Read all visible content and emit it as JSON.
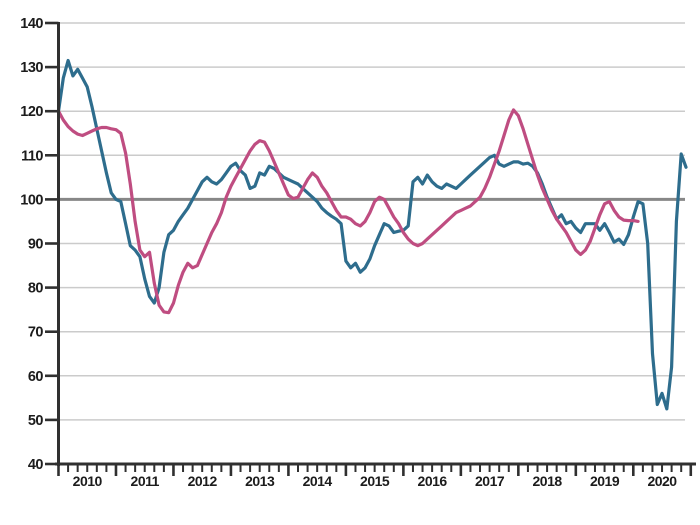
{
  "chart_data": {
    "type": "line",
    "title": "",
    "xlabel": "",
    "ylabel": "",
    "x_axis": {
      "year_labels": [
        "2010",
        "2011",
        "2012",
        "2013",
        "2014",
        "2015",
        "2016",
        "2017",
        "2018",
        "2019",
        "2020"
      ],
      "minor_tick_every_months": 2,
      "major_tick_every_months": 12
    },
    "y_axis": {
      "min": 40,
      "max": 140,
      "tick_step": 10,
      "ticks": [
        140,
        130,
        120,
        110,
        100,
        90,
        80,
        70,
        60,
        50,
        40
      ]
    },
    "reference_line": {
      "value": 100
    },
    "grid": "horizontal-only",
    "legend": "none",
    "frequency": "monthly",
    "start_month": "2010-01",
    "series": [
      {
        "name": "teal-index-line",
        "color": "#2e6d8d",
        "values": [
          120.0,
          127.5,
          131.5,
          128.0,
          129.5,
          127.5,
          125.5,
          121.0,
          116.0,
          111.0,
          106.0,
          101.5,
          100.0,
          99.5,
          94.5,
          89.5,
          88.5,
          87.0,
          82.0,
          78.0,
          76.5,
          80.0,
          88.0,
          92.0,
          93.0,
          95.0,
          96.5,
          98.0,
          100.0,
          102.0,
          104.0,
          105.0,
          104.0,
          103.5,
          104.5,
          106.0,
          107.5,
          108.2,
          106.5,
          105.5,
          102.5,
          103.0,
          106.0,
          105.5,
          107.5,
          107.0,
          106.0,
          105.0,
          104.5,
          104.0,
          103.5,
          102.5,
          101.5,
          100.5,
          99.5,
          98.0,
          97.0,
          96.2,
          95.5,
          94.5,
          86.0,
          84.5,
          85.5,
          83.5,
          84.5,
          86.5,
          89.5,
          92.0,
          94.5,
          94.0,
          92.5,
          92.8,
          93.0,
          94.0,
          104.0,
          105.0,
          103.5,
          105.5,
          104.0,
          103.0,
          102.5,
          103.5,
          103.0,
          102.5,
          103.5,
          104.5,
          105.5,
          106.5,
          107.5,
          108.5,
          109.5,
          110.0,
          108.0,
          107.5,
          108.0,
          108.5,
          108.5,
          108.0,
          108.2,
          107.5,
          106.0,
          103.5,
          100.5,
          98.0,
          95.5,
          96.5,
          94.5,
          95.0,
          93.5,
          92.5,
          94.5,
          94.5,
          94.5,
          93.0,
          94.5,
          92.5,
          90.3,
          91.0,
          89.8,
          92.0,
          96.0,
          99.5,
          99.0,
          90.0,
          65.0,
          53.5,
          56.0,
          52.5,
          62.0,
          95.0,
          110.3,
          107.3
        ]
      },
      {
        "name": "pink-index-line",
        "color": "#bf4d81",
        "values": [
          120.0,
          118.0,
          116.5,
          115.5,
          114.8,
          114.5,
          115.0,
          115.5,
          116.0,
          116.3,
          116.3,
          116.0,
          115.8,
          115.0,
          110.5,
          103.5,
          95.0,
          88.5,
          87.0,
          88.0,
          81.0,
          76.0,
          74.5,
          74.3,
          76.5,
          80.5,
          83.5,
          85.5,
          84.5,
          85.0,
          87.5,
          90.0,
          92.5,
          94.5,
          97.0,
          100.5,
          103.0,
          105.0,
          107.0,
          109.0,
          111.0,
          112.5,
          113.3,
          113.0,
          111.0,
          108.5,
          106.0,
          103.5,
          101.0,
          100.2,
          100.5,
          102.5,
          104.5,
          106.0,
          105.0,
          103.0,
          101.5,
          99.5,
          97.5,
          96.0,
          96.0,
          95.5,
          94.5,
          94.0,
          95.0,
          97.0,
          99.5,
          100.5,
          100.0,
          98.0,
          96.0,
          94.5,
          92.5,
          91.0,
          90.0,
          89.5,
          90.0,
          91.0,
          92.0,
          93.0,
          94.0,
          95.0,
          96.0,
          97.0,
          97.5,
          98.0,
          98.5,
          99.5,
          100.5,
          102.5,
          105.0,
          108.0,
          111.0,
          114.5,
          118.0,
          120.3,
          119.0,
          116.0,
          112.5,
          109.0,
          105.5,
          102.5,
          100.0,
          97.5,
          95.5,
          94.0,
          92.5,
          90.5,
          88.5,
          87.5,
          88.5,
          90.5,
          93.5,
          96.5,
          99.0,
          99.5,
          97.5,
          96.0,
          95.3,
          95.2,
          95.2,
          95.0
        ]
      }
    ],
    "colors": {
      "background": "#ffffff",
      "gridline": "#cbcbcb",
      "reference_line": "#878787",
      "axis": "#303030",
      "tick_label": "#1c1c1c"
    }
  }
}
